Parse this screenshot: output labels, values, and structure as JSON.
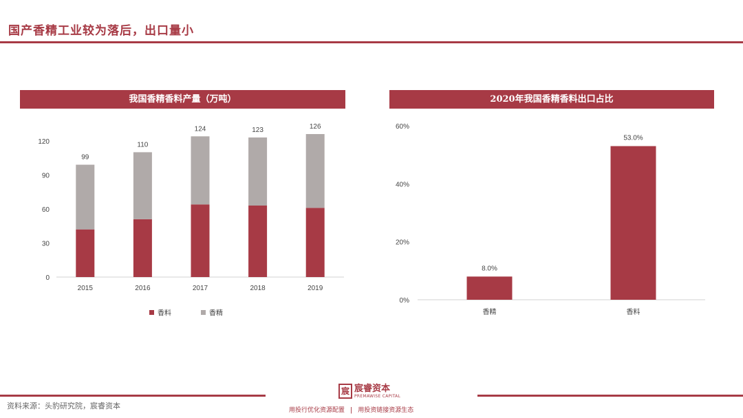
{
  "page": {
    "title": "国产香精工业较为落后，出口量小",
    "source": "资料来源：头豹研究院，宸睿资本",
    "logo_cn": "宸睿资本",
    "logo_en": "PREMAWISE CAPITAL",
    "slogan_left": "用投行优化资源配置",
    "slogan_sep": "|",
    "slogan_right": "用投资链接资源生态"
  },
  "colors": {
    "accent": "#a73a45",
    "spice": "#a73a45",
    "flavor": "#b0aaa9"
  },
  "chart_data": [
    {
      "type": "bar",
      "stacked": true,
      "title": "我国香精香料产量（万吨）",
      "categories": [
        "2015",
        "2016",
        "2017",
        "2018",
        "2019"
      ],
      "series": [
        {
          "name": "香料",
          "values": [
            42,
            51,
            64,
            63,
            61
          ]
        },
        {
          "name": "香精",
          "values": [
            57,
            59,
            60,
            60,
            65
          ]
        }
      ],
      "totals": [
        "99",
        "110",
        "124",
        "123",
        "126"
      ],
      "yticks": [
        "0",
        "30",
        "60",
        "90",
        "120"
      ],
      "ylim": [
        0,
        126
      ],
      "legend_position": "bottom",
      "grid": false
    },
    {
      "type": "bar",
      "title": "2020年我国香精香料出口占比",
      "categories": [
        "香精",
        "香料"
      ],
      "values": [
        8.0,
        53.0
      ],
      "value_labels": [
        "8.0%",
        "53.0%"
      ],
      "yticks": [
        "0%",
        "20%",
        "40%",
        "60%"
      ],
      "ylim": [
        0,
        60
      ],
      "grid": false
    }
  ]
}
